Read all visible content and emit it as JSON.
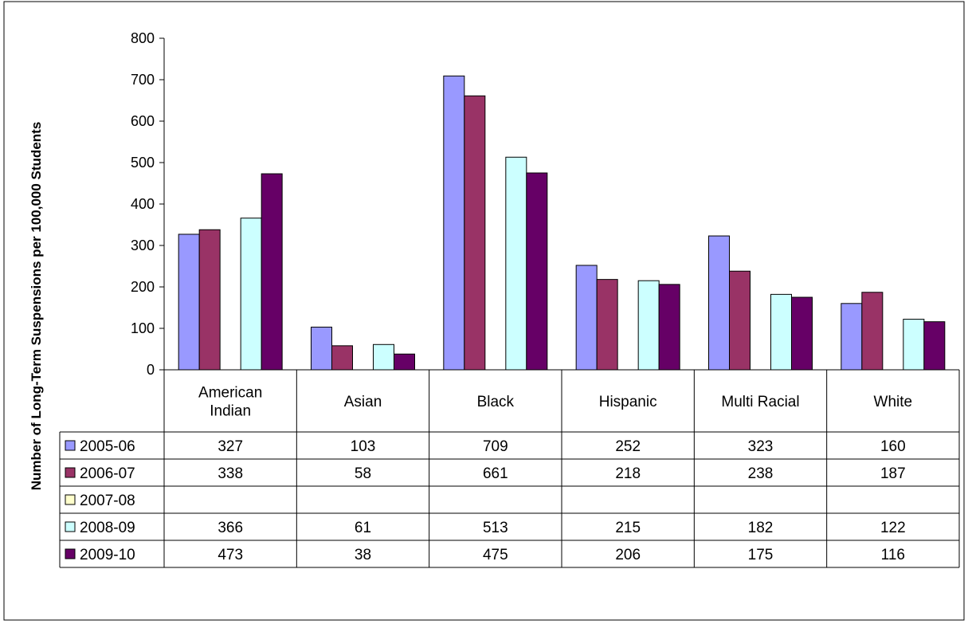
{
  "chart_data": {
    "type": "bar",
    "title": "",
    "xlabel": "",
    "ylabel": "Number of Long-Term Suspensions per 100,000 Students",
    "ylim": [
      0,
      800
    ],
    "yticks": [
      "0",
      "100",
      "200",
      "300",
      "400",
      "500",
      "600",
      "700",
      "800"
    ],
    "grid": false,
    "legend": "data-table",
    "categories": [
      "American Indian",
      "Asian",
      "Black",
      "Hispanic",
      "Multi Racial",
      "White"
    ],
    "series": [
      {
        "name": "2005-06",
        "color": "#9999FF",
        "values": [
          327,
          103,
          709,
          252,
          323,
          160
        ]
      },
      {
        "name": "2006-07",
        "color": "#993366",
        "values": [
          338,
          58,
          661,
          218,
          238,
          187
        ]
      },
      {
        "name": "2007-08",
        "color": "#FFFFCC",
        "values": [
          null,
          null,
          null,
          null,
          null,
          null
        ]
      },
      {
        "name": "2008-09",
        "color": "#CCFFFF",
        "values": [
          366,
          61,
          513,
          215,
          182,
          122
        ]
      },
      {
        "name": "2009-10",
        "color": "#660066",
        "values": [
          473,
          38,
          475,
          206,
          175,
          116
        ]
      }
    ]
  }
}
